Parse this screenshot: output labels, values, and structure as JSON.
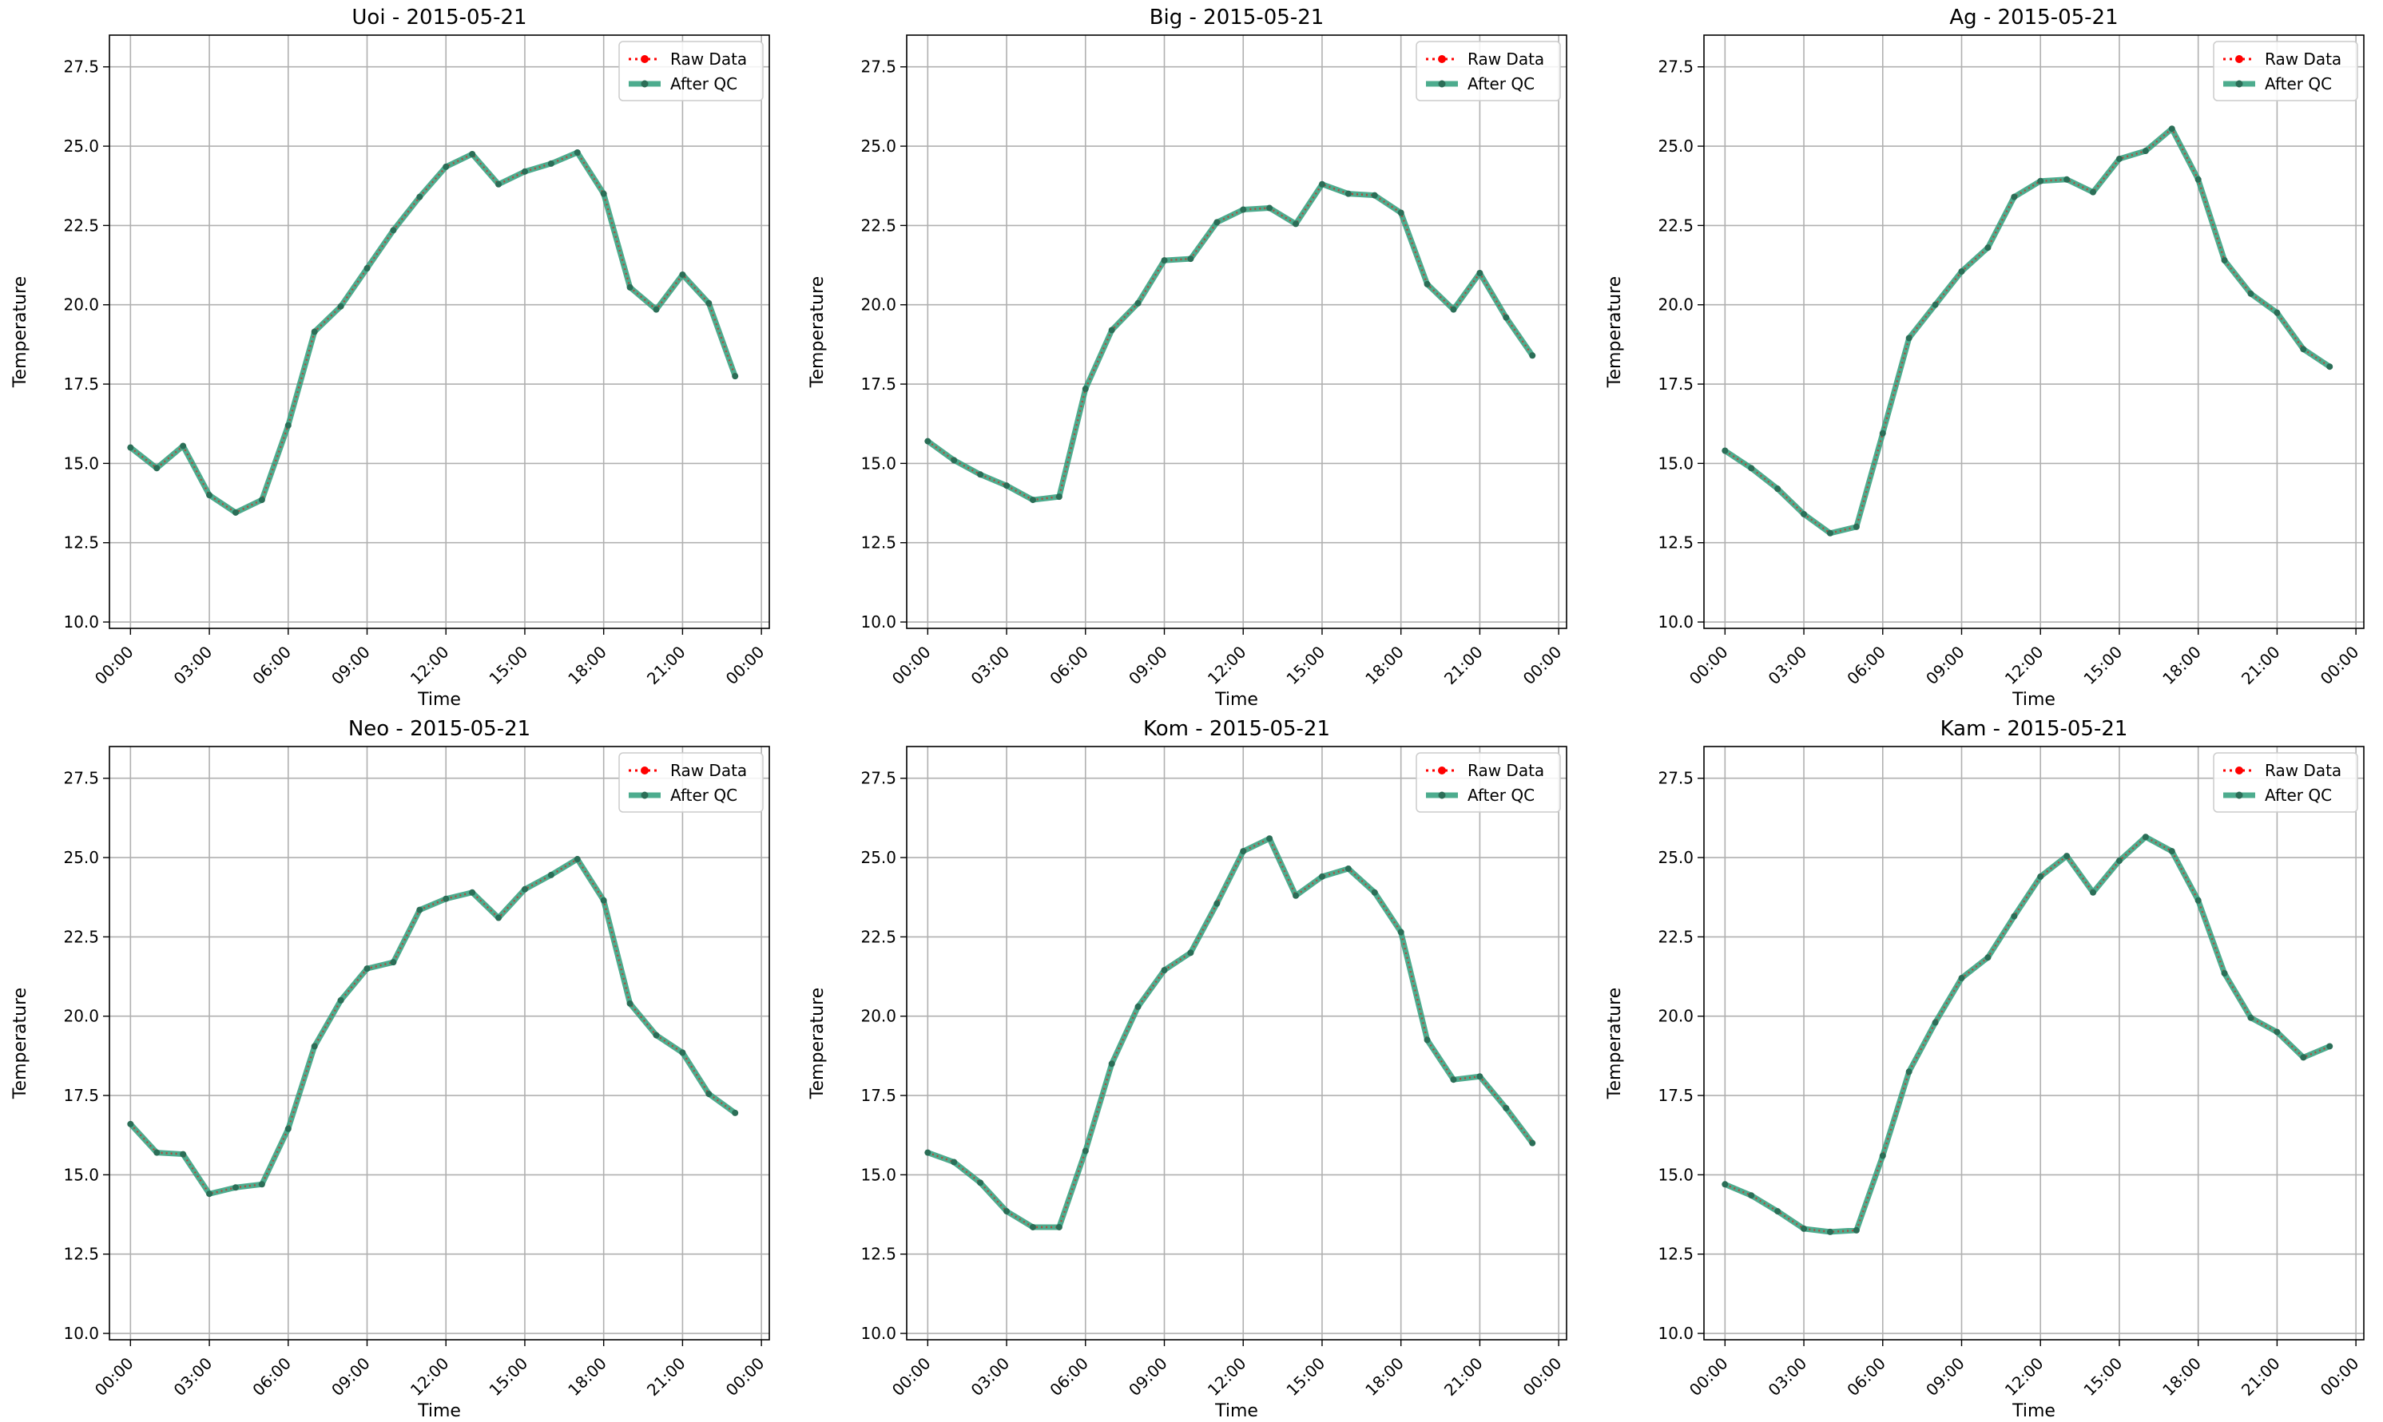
{
  "colors": {
    "raw": "#ff0000",
    "qc": "#2e9e7a",
    "qc_marker": "#2b6e57",
    "grid": "#b0b0b0",
    "legend_border": "#cccccc"
  },
  "chart_data": [
    {
      "type": "line",
      "title": "Uoi - 2015-05-21",
      "xlabel": "Time",
      "ylabel": "Temperature",
      "xticks": [
        "00:00",
        "03:00",
        "06:00",
        "09:00",
        "12:00",
        "15:00",
        "18:00",
        "21:00",
        "00:00"
      ],
      "yticks": [
        "10.0",
        "12.5",
        "15.0",
        "17.5",
        "20.0",
        "22.5",
        "25.0",
        "27.5"
      ],
      "ylim": [
        10.0,
        28.5
      ],
      "x_hours": [
        0,
        1,
        2,
        3,
        4,
        5,
        6,
        7,
        8,
        9,
        10,
        11,
        12,
        13,
        14,
        15,
        16,
        17,
        18,
        19,
        20,
        21,
        22,
        23
      ],
      "grid": true,
      "legend": "upper-right",
      "series": [
        {
          "name": "Raw Data",
          "values": [
            15.5,
            14.85,
            15.55,
            14.0,
            13.45,
            13.85,
            16.2,
            19.15,
            19.95,
            21.15,
            22.35,
            23.4,
            24.35,
            24.75,
            23.8,
            24.2,
            24.45,
            24.8,
            23.5,
            20.55,
            19.85,
            20.95,
            20.05,
            17.75
          ]
        },
        {
          "name": "After QC",
          "values": [
            15.5,
            14.85,
            15.55,
            14.0,
            13.45,
            13.85,
            16.2,
            19.15,
            19.95,
            21.15,
            22.35,
            23.4,
            24.35,
            24.75,
            23.8,
            24.2,
            24.45,
            24.8,
            23.5,
            20.55,
            19.85,
            20.95,
            20.05,
            17.75
          ]
        }
      ]
    },
    {
      "type": "line",
      "title": "Big - 2015-05-21",
      "xlabel": "Time",
      "ylabel": "Temperature",
      "xticks": [
        "00:00",
        "03:00",
        "06:00",
        "09:00",
        "12:00",
        "15:00",
        "18:00",
        "21:00",
        "00:00"
      ],
      "yticks": [
        "10.0",
        "12.5",
        "15.0",
        "17.5",
        "20.0",
        "22.5",
        "25.0",
        "27.5"
      ],
      "ylim": [
        10.0,
        28.5
      ],
      "x_hours": [
        0,
        1,
        2,
        3,
        4,
        5,
        6,
        7,
        8,
        9,
        10,
        11,
        12,
        13,
        14,
        15,
        16,
        17,
        18,
        19,
        20,
        21,
        22,
        23
      ],
      "grid": true,
      "legend": "upper-right",
      "series": [
        {
          "name": "Raw Data",
          "values": [
            15.7,
            15.1,
            14.65,
            14.3,
            13.85,
            13.95,
            17.35,
            19.2,
            20.05,
            21.4,
            21.45,
            22.6,
            23.0,
            23.05,
            22.55,
            23.8,
            23.5,
            23.45,
            22.9,
            20.65,
            19.85,
            21.0,
            19.6,
            18.4
          ]
        },
        {
          "name": "After QC",
          "values": [
            15.7,
            15.1,
            14.65,
            14.3,
            13.85,
            13.95,
            17.35,
            19.2,
            20.05,
            21.4,
            21.45,
            22.6,
            23.0,
            23.05,
            22.55,
            23.8,
            23.5,
            23.45,
            22.9,
            20.65,
            19.85,
            21.0,
            19.6,
            18.4
          ]
        }
      ]
    },
    {
      "type": "line",
      "title": "Ag - 2015-05-21",
      "xlabel": "Time",
      "ylabel": "Temperature",
      "xticks": [
        "00:00",
        "03:00",
        "06:00",
        "09:00",
        "12:00",
        "15:00",
        "18:00",
        "21:00",
        "00:00"
      ],
      "yticks": [
        "10.0",
        "12.5",
        "15.0",
        "17.5",
        "20.0",
        "22.5",
        "25.0",
        "27.5"
      ],
      "ylim": [
        10.0,
        28.5
      ],
      "x_hours": [
        0,
        1,
        2,
        3,
        4,
        5,
        6,
        7,
        8,
        9,
        10,
        11,
        12,
        13,
        14,
        15,
        16,
        17,
        18,
        19,
        20,
        21,
        22,
        23
      ],
      "grid": true,
      "legend": "upper-right",
      "series": [
        {
          "name": "Raw Data",
          "values": [
            15.4,
            14.85,
            14.2,
            13.4,
            12.8,
            13.0,
            15.95,
            18.95,
            20.0,
            21.05,
            21.8,
            23.4,
            23.9,
            23.95,
            23.55,
            24.6,
            24.85,
            25.55,
            23.95,
            21.4,
            20.35,
            19.75,
            18.6,
            18.05
          ]
        },
        {
          "name": "After QC",
          "values": [
            15.4,
            14.85,
            14.2,
            13.4,
            12.8,
            13.0,
            15.95,
            18.95,
            20.0,
            21.05,
            21.8,
            23.4,
            23.9,
            23.95,
            23.55,
            24.6,
            24.85,
            25.55,
            23.95,
            21.4,
            20.35,
            19.75,
            18.6,
            18.05
          ]
        }
      ]
    },
    {
      "type": "line",
      "title": "Neo - 2015-05-21",
      "xlabel": "Time",
      "ylabel": "Temperature",
      "xticks": [
        "00:00",
        "03:00",
        "06:00",
        "09:00",
        "12:00",
        "15:00",
        "18:00",
        "21:00",
        "00:00"
      ],
      "yticks": [
        "10.0",
        "12.5",
        "15.0",
        "17.5",
        "20.0",
        "22.5",
        "25.0",
        "27.5"
      ],
      "ylim": [
        10.0,
        28.5
      ],
      "x_hours": [
        0,
        1,
        2,
        3,
        4,
        5,
        6,
        7,
        8,
        9,
        10,
        11,
        12,
        13,
        14,
        15,
        16,
        17,
        18,
        19,
        20,
        21,
        22,
        23
      ],
      "grid": true,
      "legend": "upper-right",
      "series": [
        {
          "name": "Raw Data",
          "values": [
            16.6,
            15.7,
            15.65,
            14.4,
            14.6,
            14.7,
            16.45,
            19.05,
            20.5,
            21.5,
            21.7,
            23.35,
            23.7,
            23.9,
            23.1,
            24.0,
            24.45,
            24.95,
            23.65,
            20.4,
            19.4,
            18.85,
            17.55,
            16.95
          ]
        },
        {
          "name": "After QC",
          "values": [
            16.6,
            15.7,
            15.65,
            14.4,
            14.6,
            14.7,
            16.45,
            19.05,
            20.5,
            21.5,
            21.7,
            23.35,
            23.7,
            23.9,
            23.1,
            24.0,
            24.45,
            24.95,
            23.65,
            20.4,
            19.4,
            18.85,
            17.55,
            16.95
          ]
        }
      ]
    },
    {
      "type": "line",
      "title": "Kom - 2015-05-21",
      "xlabel": "Time",
      "ylabel": "Temperature",
      "xticks": [
        "00:00",
        "03:00",
        "06:00",
        "09:00",
        "12:00",
        "15:00",
        "18:00",
        "21:00",
        "00:00"
      ],
      "yticks": [
        "10.0",
        "12.5",
        "15.0",
        "17.5",
        "20.0",
        "22.5",
        "25.0",
        "27.5"
      ],
      "ylim": [
        10.0,
        28.5
      ],
      "x_hours": [
        0,
        1,
        2,
        3,
        4,
        5,
        6,
        7,
        8,
        9,
        10,
        11,
        12,
        13,
        14,
        15,
        16,
        17,
        18,
        19,
        20,
        21,
        22,
        23
      ],
      "grid": true,
      "legend": "upper-right",
      "series": [
        {
          "name": "Raw Data",
          "values": [
            15.7,
            15.4,
            14.75,
            13.85,
            13.35,
            13.35,
            15.75,
            18.5,
            20.3,
            21.45,
            22.0,
            23.55,
            25.2,
            25.6,
            23.8,
            24.4,
            24.65,
            23.9,
            22.65,
            19.25,
            18.0,
            18.1,
            17.1,
            16.0
          ]
        },
        {
          "name": "After QC",
          "values": [
            15.7,
            15.4,
            14.75,
            13.85,
            13.35,
            13.35,
            15.75,
            18.5,
            20.3,
            21.45,
            22.0,
            23.55,
            25.2,
            25.6,
            23.8,
            24.4,
            24.65,
            23.9,
            22.65,
            19.25,
            18.0,
            18.1,
            17.1,
            16.0
          ]
        }
      ]
    },
    {
      "type": "line",
      "title": "Kam - 2015-05-21",
      "xlabel": "Time",
      "ylabel": "Temperature",
      "xticks": [
        "00:00",
        "03:00",
        "06:00",
        "09:00",
        "12:00",
        "15:00",
        "18:00",
        "21:00",
        "00:00"
      ],
      "yticks": [
        "10.0",
        "12.5",
        "15.0",
        "17.5",
        "20.0",
        "22.5",
        "25.0",
        "27.5"
      ],
      "ylim": [
        10.0,
        28.5
      ],
      "x_hours": [
        0,
        1,
        2,
        3,
        4,
        5,
        6,
        7,
        8,
        9,
        10,
        11,
        12,
        13,
        14,
        15,
        16,
        17,
        18,
        19,
        20,
        21,
        22,
        23
      ],
      "grid": true,
      "legend": "upper-right",
      "series": [
        {
          "name": "Raw Data",
          "values": [
            14.7,
            14.35,
            13.85,
            13.3,
            13.2,
            13.25,
            15.6,
            18.25,
            19.8,
            21.2,
            21.85,
            23.15,
            24.4,
            25.05,
            23.9,
            24.9,
            25.65,
            25.2,
            23.65,
            21.35,
            19.95,
            19.5,
            18.7,
            19.05
          ]
        },
        {
          "name": "After QC",
          "values": [
            14.7,
            14.35,
            13.85,
            13.3,
            13.2,
            13.25,
            15.6,
            18.25,
            19.8,
            21.2,
            21.85,
            23.15,
            24.4,
            25.05,
            23.9,
            24.9,
            25.65,
            25.2,
            23.65,
            21.35,
            19.95,
            19.5,
            18.7,
            19.05
          ]
        }
      ]
    }
  ]
}
